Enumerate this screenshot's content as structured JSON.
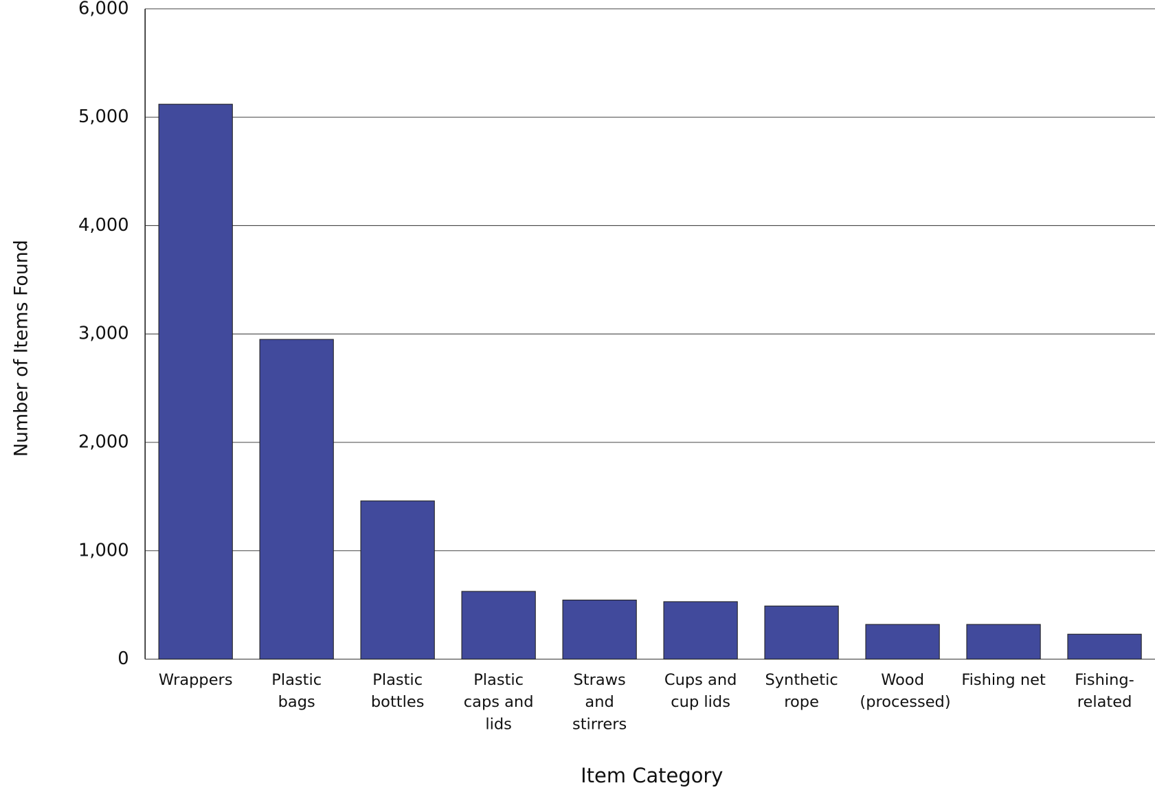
{
  "chart_data": {
    "type": "bar",
    "x_label": "Item Category",
    "y_label": "Number of Items Found",
    "categories": [
      "Wrappers",
      "Plastic bags",
      "Plastic bottles",
      "Plastic caps and lids",
      "Straws and stirrers",
      "Cups and cup lids",
      "Synthetic rope",
      "Wood (processed)",
      "Fishing net",
      "Fishing-related"
    ],
    "values": [
      5120,
      2950,
      1460,
      625,
      545,
      530,
      490,
      320,
      320,
      230
    ],
    "color": "#414a9c",
    "ylim": [
      0,
      6000
    ],
    "yticks": [
      0,
      {
        "value": 1000,
        "label": "1,000"
      },
      {
        "value": 2000,
        "label": "2,000"
      },
      {
        "value": 3000,
        "label": "3,000"
      },
      {
        "value": 4000,
        "label": "4,000"
      },
      {
        "value": 5000,
        "label": "5,000"
      },
      {
        "value": 6000,
        "label": "6,000"
      }
    ],
    "grid": true
  }
}
